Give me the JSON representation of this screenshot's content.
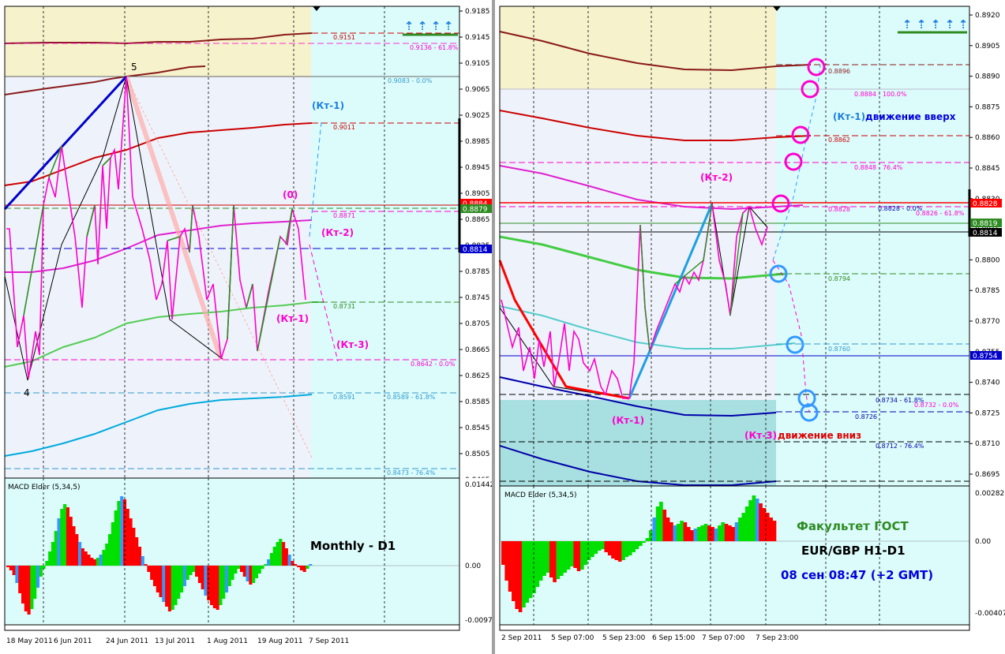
{
  "colors": {
    "plot_bg": "#dcfcfc",
    "weekly_band": "#f5f2cc",
    "history_bg": "#eef3fb",
    "lower_band": "#a8dfe0",
    "macd_up": "#00e000",
    "macd_up_hist": "#3399ff",
    "macd_down": "#ff0000",
    "blue_arrows": "#1e7fe0",
    "green_text": "#2e8b22",
    "blue_text": "#0000dd",
    "magenta": "#ff00cc"
  },
  "icons": [
    "arrow-up-icon",
    "circle-marker-icon"
  ],
  "left_panel": {
    "price_axis": [
      "0.9185",
      "0.9145",
      "0.9105",
      "0.9065",
      "0.9025",
      "0.8985",
      "0.8945",
      "0.8905",
      "0.8865",
      "0.8825",
      "0.8785",
      "0.8745",
      "0.8705",
      "0.8665",
      "0.8625",
      "0.8585",
      "0.8545",
      "0.8505",
      "0.8465"
    ],
    "price_badges": [
      {
        "text": "0.8884",
        "bg": "#ff0000",
        "fg": "#ffffff"
      },
      {
        "text": "0.8879",
        "bg": "#2e8b22",
        "fg": "#ffffff"
      },
      {
        "text": "0.8814",
        "bg": "#0000cc",
        "fg": "#ffffff"
      }
    ],
    "level_labels": [
      {
        "text": "0.9151",
        "color": "#cc0000"
      },
      {
        "text": "0.9136 - 61.8%",
        "color": "#ff00cc"
      },
      {
        "text": "0.9083 - 0.0%",
        "color": "#3399cc"
      },
      {
        "text": "0.9011",
        "color": "#cc0000"
      },
      {
        "text": "0.8871",
        "color": "#ff00cc"
      },
      {
        "text": "0.8731",
        "color": "#2e8b22"
      },
      {
        "text": "0.8642 - 0.0%",
        "color": "#ff00cc"
      },
      {
        "text": "0.8591",
        "color": "#3399cc"
      },
      {
        "text": "0.8589 - 61.8%",
        "color": "#3399cc"
      },
      {
        "text": "0.8473 - 76.4%",
        "color": "#3399cc"
      }
    ],
    "annotations": [
      {
        "text": "(Кт-1)",
        "color": "#1e7fe0"
      },
      {
        "text": "(0)",
        "color": "#ff00cc"
      },
      {
        "text": "(Кт-2)",
        "color": "#ff00cc"
      },
      {
        "text": "(Кт-1)",
        "color": "#ff00cc"
      },
      {
        "text": "(Кт-3)",
        "color": "#ff00cc"
      },
      {
        "text": "5",
        "color": "#000000"
      },
      {
        "text": "4",
        "color": "#000000"
      }
    ],
    "macd_label": "MACD Elder (5,34,5)",
    "macd_axis": [
      "0.01442",
      "0.00",
      "-0.00977"
    ],
    "caption": "Monthly - D1",
    "date_axis": [
      "18 May 2011",
      "6 Jun 2011",
      "24 Jun 2011",
      "13 Jul 2011",
      "1 Aug 2011",
      "19 Aug 2011",
      "7 Sep 2011"
    ]
  },
  "right_panel": {
    "price_axis": [
      "0.8920",
      "0.8905",
      "0.8890",
      "0.8875",
      "0.8860",
      "0.8845",
      "0.8830",
      "0.8815",
      "0.8800",
      "0.8785",
      "0.8770",
      "0.8755",
      "0.8740",
      "0.8725",
      "0.8710",
      "0.8695"
    ],
    "price_badges": [
      {
        "text": "0.8828",
        "bg": "#ff0000",
        "fg": "#ffffff"
      },
      {
        "text": "0.8819",
        "bg": "#2e8b22",
        "fg": "#ffffff"
      },
      {
        "text": "0.8814",
        "bg": "#000000",
        "fg": "#ffffff"
      },
      {
        "text": "0.8754",
        "bg": "#0000cc",
        "fg": "#ffffff"
      }
    ],
    "level_labels": [
      {
        "text": "0.8896",
        "color": "#8b1a1a"
      },
      {
        "text": "0.8884 - 100.0%",
        "color": "#ff00cc"
      },
      {
        "text": "0.8862",
        "color": "#cc0000"
      },
      {
        "text": "0.8848 - 76.4%",
        "color": "#ff00cc"
      },
      {
        "text": "0.8828",
        "color": "#ff00cc"
      },
      {
        "text": "0.8828 - 0.0%",
        "color": "#0000aa"
      },
      {
        "text": "0.8826 - 61.8%",
        "color": "#ff00cc"
      },
      {
        "text": "0.8794",
        "color": "#2e8b22"
      },
      {
        "text": "0.8760",
        "color": "#3399cc"
      },
      {
        "text": "0.8734 - 61.8%",
        "color": "#0000aa"
      },
      {
        "text": "0.8732 - 0.0%",
        "color": "#ff00cc"
      },
      {
        "text": "0.8726",
        "color": "#0000aa"
      },
      {
        "text": "0.8712 - 76.4%",
        "color": "#0000aa"
      }
    ],
    "annotations": [
      {
        "text": "(Кт-1)",
        "color": "#1e7fe0"
      },
      {
        "text": "движение вверх",
        "color": "#0000dd"
      },
      {
        "text": "(Кт-2)",
        "color": "#ff00cc"
      },
      {
        "text": "(Кт-1)",
        "color": "#ff00cc"
      },
      {
        "text": "(Кт-3)",
        "color": "#ff00cc"
      },
      {
        "text": "движение вниз",
        "color": "#dd0000"
      }
    ],
    "macd_label": "MACD Elder (5,34,5)",
    "macd_axis": [
      "0.00282",
      "0.00",
      "-0.00407"
    ],
    "captions": [
      "Факультет ГОСТ",
      "EUR/GBP H1-D1",
      "08 сен 08:47 (+2 GMT)"
    ],
    "date_axis": [
      "2 Sep 2011",
      "5 Sep 07:00",
      "5 Sep 23:00",
      "6 Sep 15:00",
      "7 Sep 07:00",
      "7 Sep 23:00"
    ]
  }
}
